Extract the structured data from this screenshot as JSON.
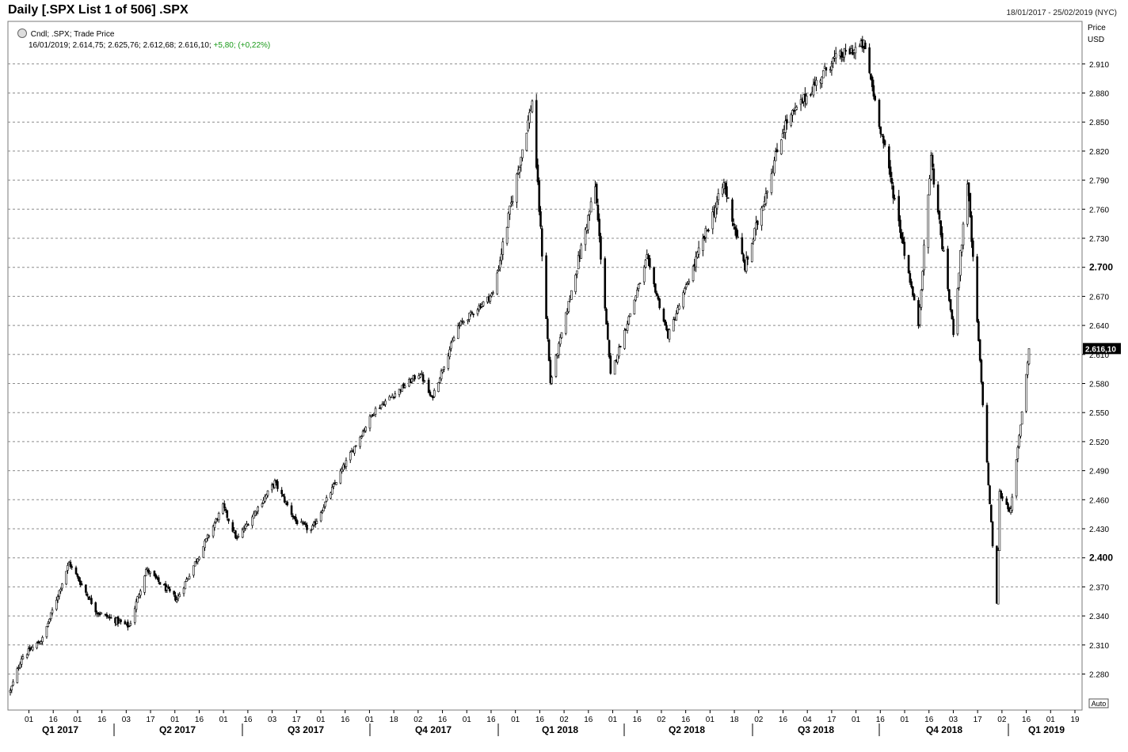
{
  "header": {
    "title": "Daily [.SPX List 1 of 506] .SPX",
    "date_range": "18/01/2017 - 25/02/2019 (NYC)"
  },
  "legend": {
    "series_desc": "Cndl; .SPX; Trade Price",
    "ohlc": "16/01/2019; 2.614,75; 2.625,76; 2.612,68; 2.616,10;",
    "change": "+5,80; (+0,22%)",
    "icon": "chart-tool-icon"
  },
  "axis": {
    "price_label": "Price",
    "currency_label": "USD",
    "auto_label": "Auto",
    "last_price_label": "2.616,10"
  },
  "chart_data": {
    "type": "candlestick",
    "title": "Daily [.SPX List 1 of 506] .SPX",
    "ylabel": "Price USD",
    "ylim": [
      2250,
      2975
    ],
    "y_ticks": [
      2280,
      2310,
      2340,
      2370,
      2400,
      2430,
      2460,
      2490,
      2520,
      2550,
      2580,
      2610,
      2640,
      2670,
      2700,
      2730,
      2760,
      2790,
      2820,
      2850,
      2880,
      2910
    ],
    "y_tick_labels": [
      "2.280",
      "2.310",
      "2.340",
      "2.370",
      "2.400",
      "2.430",
      "2.460",
      "2.490",
      "2.520",
      "2.550",
      "2.580",
      "2.610",
      "2.640",
      "2.670",
      "2.700",
      "2.730",
      "2.760",
      "2.790",
      "2.820",
      "2.850",
      "2.880",
      "2.910"
    ],
    "y_major_ticks": [
      2400,
      2700
    ],
    "x_tick_labels": [
      "01",
      "16",
      "01",
      "16",
      "03",
      "17",
      "01",
      "16",
      "01",
      "16",
      "03",
      "17",
      "01",
      "16",
      "01",
      "18",
      "02",
      "16",
      "01",
      "16",
      "01",
      "16",
      "02",
      "16",
      "01",
      "16",
      "02",
      "16",
      "01",
      "18",
      "02",
      "16",
      "04",
      "17",
      "01",
      "16",
      "01",
      "16",
      "03",
      "17",
      "02",
      "16",
      "01",
      "19"
    ],
    "quarters": [
      "Q1 2017",
      "Q2 2017",
      "Q3 2017",
      "Q4 2017",
      "Q1 2018",
      "Q2 2018",
      "Q3 2018",
      "Q4 2018",
      "Q1 2019"
    ],
    "grid": true,
    "last_value": 2616.1,
    "keypoints": [
      [
        "2017-01-18",
        2262
      ],
      [
        "2017-01-26",
        2297
      ],
      [
        "2017-02-10",
        2316
      ],
      [
        "2017-03-01",
        2395
      ],
      [
        "2017-03-21",
        2344
      ],
      [
        "2017-04-13",
        2329
      ],
      [
        "2017-04-25",
        2388
      ],
      [
        "2017-05-17",
        2357
      ],
      [
        "2017-06-19",
        2453
      ],
      [
        "2017-06-29",
        2419
      ],
      [
        "2017-07-26",
        2478
      ],
      [
        "2017-08-10",
        2438
      ],
      [
        "2017-08-21",
        2428
      ],
      [
        "2017-09-11",
        2488
      ],
      [
        "2017-10-05",
        2552
      ],
      [
        "2017-11-07",
        2591
      ],
      [
        "2017-11-15",
        2564
      ],
      [
        "2017-12-04",
        2639
      ],
      [
        "2017-12-29",
        2673
      ],
      [
        "2018-01-26",
        2872
      ],
      [
        "2018-02-08",
        2581
      ],
      [
        "2018-03-12",
        2783
      ],
      [
        "2018-03-23",
        2588
      ],
      [
        "2018-04-18",
        2708
      ],
      [
        "2018-05-03",
        2629
      ],
      [
        "2018-06-12",
        2786
      ],
      [
        "2018-06-27",
        2699
      ],
      [
        "2018-07-25",
        2846
      ],
      [
        "2018-08-29",
        2914
      ],
      [
        "2018-09-20",
        2930
      ],
      [
        "2018-10-10",
        2785
      ],
      [
        "2018-10-29",
        2641
      ],
      [
        "2018-11-07",
        2813
      ],
      [
        "2018-11-23",
        2633
      ],
      [
        "2018-12-03",
        2790
      ],
      [
        "2018-12-24",
        2351
      ],
      [
        "2018-12-26",
        2467
      ],
      [
        "2019-01-03",
        2448
      ],
      [
        "2019-01-16",
        2616
      ]
    ]
  }
}
